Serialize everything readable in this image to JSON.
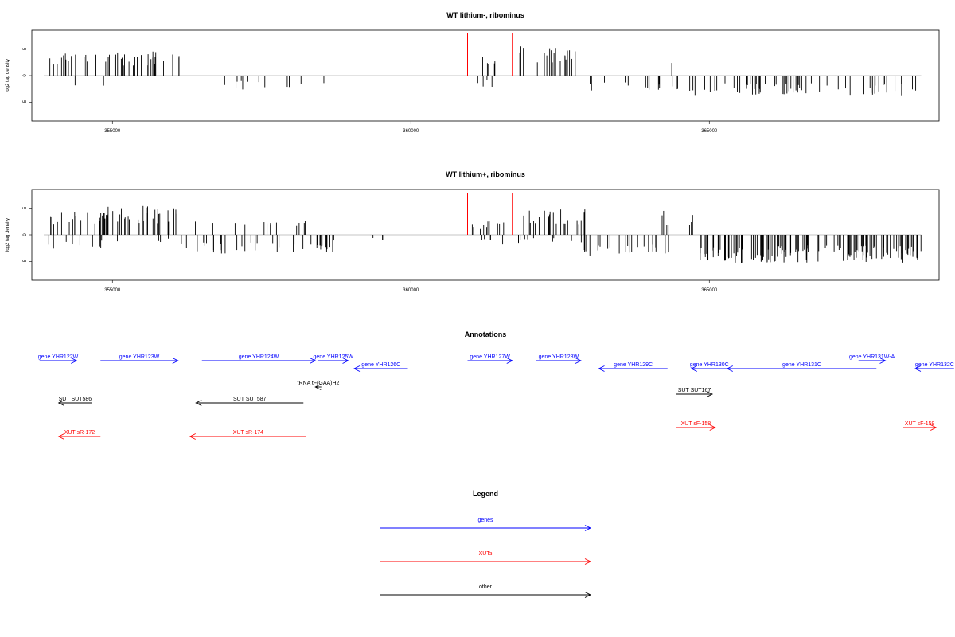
{
  "colors": {
    "gene": "#0000ff",
    "xut": "#ff0000",
    "other": "#000000",
    "marker": "#ff0000",
    "bars": "#000000",
    "baseline": "#8c8c8c"
  },
  "chart_data": [
    {
      "type": "bar",
      "title": "WT lithium-, ribominus",
      "ylabel": "log2 tag density",
      "xlim": [
        353650,
        368850
      ],
      "ylim": [
        -8.5,
        8.5
      ],
      "xticks": [
        355000,
        360000,
        365000
      ],
      "xtick_labels": [
        "355000",
        "360000",
        "365000"
      ],
      "yticks": [
        5,
        0,
        -5
      ],
      "ytick_labels": [
        "5",
        "0",
        "-5"
      ],
      "markers": [
        360950,
        361700
      ],
      "regions": [
        {
          "start": 353840,
          "end": 354850,
          "sign": 1,
          "mean": 3.0,
          "density": 26
        },
        {
          "start": 354050,
          "end": 354900,
          "sign": -1,
          "mean": 2.0,
          "density": 5
        },
        {
          "start": 354770,
          "end": 356120,
          "sign": 1,
          "mean": 3.4,
          "density": 34
        },
        {
          "start": 356400,
          "end": 358600,
          "sign": -1,
          "mean": 1.8,
          "density": 10
        },
        {
          "start": 358150,
          "end": 358350,
          "sign": 1,
          "mean": 1.2,
          "density": 10
        },
        {
          "start": 359280,
          "end": 359300,
          "sign": -1,
          "mean": 1.4,
          "density": 20
        },
        {
          "start": 361000,
          "end": 361650,
          "sign": 1,
          "mean": 2.5,
          "density": 10
        },
        {
          "start": 361100,
          "end": 361750,
          "sign": -1,
          "mean": 1.5,
          "density": 8
        },
        {
          "start": 361800,
          "end": 362800,
          "sign": 1,
          "mean": 3.8,
          "density": 40
        },
        {
          "start": 362800,
          "end": 364500,
          "sign": -1,
          "mean": 2.2,
          "density": 14
        },
        {
          "start": 364250,
          "end": 364550,
          "sign": 1,
          "mean": 2.5,
          "density": 10
        },
        {
          "start": 364600,
          "end": 368550,
          "sign": -1,
          "mean": 2.6,
          "density": 30
        }
      ]
    },
    {
      "type": "bar",
      "title": "WT lithium+, ribominus",
      "ylabel": "log2 tag density",
      "xlim": [
        353650,
        368850
      ],
      "ylim": [
        -8.5,
        8.5
      ],
      "xticks": [
        355000,
        360000,
        365000
      ],
      "xtick_labels": [
        "355000",
        "360000",
        "365000"
      ],
      "yticks": [
        5,
        0,
        -5
      ],
      "ytick_labels": [
        "5",
        "0",
        "-5"
      ],
      "markers": [
        360950,
        361700
      ],
      "regions": [
        {
          "start": 353840,
          "end": 354900,
          "sign": 1,
          "mean": 3.0,
          "density": 30
        },
        {
          "start": 353840,
          "end": 354900,
          "sign": -1,
          "mean": 1.8,
          "density": 14
        },
        {
          "start": 354770,
          "end": 356150,
          "sign": 1,
          "mean": 3.8,
          "density": 45
        },
        {
          "start": 354800,
          "end": 356150,
          "sign": -1,
          "mean": 1.0,
          "density": 10
        },
        {
          "start": 356100,
          "end": 358700,
          "sign": -1,
          "mean": 2.5,
          "density": 30
        },
        {
          "start": 356300,
          "end": 358300,
          "sign": 1,
          "mean": 2.0,
          "density": 14
        },
        {
          "start": 358700,
          "end": 359700,
          "sign": -1,
          "mean": 1.0,
          "density": 8
        },
        {
          "start": 360700,
          "end": 361700,
          "sign": 1,
          "mean": 2.0,
          "density": 14
        },
        {
          "start": 360900,
          "end": 361900,
          "sign": -1,
          "mean": 1.4,
          "density": 12
        },
        {
          "start": 361800,
          "end": 362950,
          "sign": 1,
          "mean": 3.4,
          "density": 40
        },
        {
          "start": 361800,
          "end": 362900,
          "sign": -1,
          "mean": 1.0,
          "density": 10
        },
        {
          "start": 362900,
          "end": 364400,
          "sign": -1,
          "mean": 2.8,
          "density": 38
        },
        {
          "start": 364200,
          "end": 364800,
          "sign": 1,
          "mean": 3.2,
          "density": 18
        },
        {
          "start": 364800,
          "end": 368600,
          "sign": -1,
          "mean": 3.6,
          "density": 70
        }
      ]
    }
  ],
  "annotations": {
    "title": "Annotations",
    "items": [
      {
        "label": "gene YHR122W",
        "start": 353780,
        "end": 354400,
        "strand": "+",
        "kind": "gene",
        "row": 0
      },
      {
        "label": "gene YHR123W",
        "start": 354800,
        "end": 356100,
        "strand": "+",
        "kind": "gene",
        "row": 0
      },
      {
        "label": "gene YHR124W",
        "start": 356500,
        "end": 358400,
        "strand": "+",
        "kind": "gene",
        "row": 0
      },
      {
        "label": "gene YHR125W",
        "start": 358450,
        "end": 358950,
        "strand": "+",
        "kind": "gene",
        "row": 0
      },
      {
        "label": "gene YHR126C",
        "start": 359050,
        "end": 359950,
        "strand": "-",
        "kind": "gene",
        "row": 1
      },
      {
        "label": "gene YHR127W",
        "start": 360950,
        "end": 361700,
        "strand": "+",
        "kind": "gene",
        "row": 0
      },
      {
        "label": "gene YHR128W",
        "start": 362100,
        "end": 362850,
        "strand": "+",
        "kind": "gene",
        "row": 0
      },
      {
        "label": "gene YHR129C",
        "start": 363150,
        "end": 364300,
        "strand": "-",
        "kind": "gene",
        "row": 1
      },
      {
        "label": "gene YHR130C",
        "start": 364700,
        "end": 365300,
        "strand": "-",
        "kind": "gene",
        "row": 1
      },
      {
        "label": "gene YHR131C",
        "start": 365300,
        "end": 367800,
        "strand": "-",
        "kind": "gene",
        "row": 1
      },
      {
        "label": "gene YHR131W-A",
        "start": 367500,
        "end": 367950,
        "strand": "+",
        "kind": "gene",
        "row": 0
      },
      {
        "label": "gene YHR132C",
        "start": 368450,
        "end": 369100,
        "strand": "-",
        "kind": "gene",
        "row": 1
      },
      {
        "label": "tRNA tF(GAA)H2",
        "start": 358400,
        "end": 358500,
        "strand": "-",
        "kind": "other",
        "row": 2
      },
      {
        "label": "SUT SUT586",
        "start": 354100,
        "end": 354650,
        "strand": "-",
        "kind": "other",
        "row": 3
      },
      {
        "label": "SUT SUT587",
        "start": 356400,
        "end": 358200,
        "strand": "-",
        "kind": "other",
        "row": 3
      },
      {
        "label": "SUT SUT167",
        "start": 364450,
        "end": 365050,
        "strand": "+",
        "kind": "other",
        "row": 4
      },
      {
        "label": "XUT sR-172",
        "start": 354100,
        "end": 354800,
        "strand": "-",
        "kind": "xut",
        "row": 6
      },
      {
        "label": "XUT sR-174",
        "start": 356300,
        "end": 358250,
        "strand": "-",
        "kind": "xut",
        "row": 6
      },
      {
        "label": "XUT sF-158",
        "start": 364450,
        "end": 365100,
        "strand": "+",
        "kind": "xut",
        "row": 5
      },
      {
        "label": "XUT sF-159",
        "start": 368250,
        "end": 368800,
        "strand": "+",
        "kind": "xut",
        "row": 5
      }
    ]
  },
  "legend": {
    "title": "Legend",
    "items": [
      {
        "label": "genes",
        "kind": "gene"
      },
      {
        "label": "XUTs",
        "kind": "xut"
      },
      {
        "label": "other",
        "kind": "other"
      }
    ]
  }
}
